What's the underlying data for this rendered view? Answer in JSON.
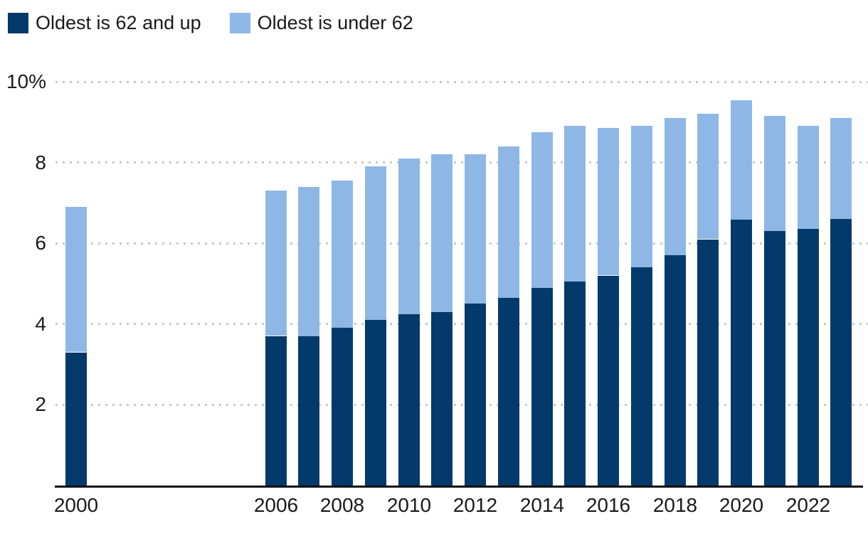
{
  "legend": {
    "items": [
      {
        "label": "Oldest is 62 and up",
        "color": "#04396b"
      },
      {
        "label": "Oldest is under 62",
        "color": "#8eb7e6"
      }
    ]
  },
  "colors": {
    "dark": "#04396b",
    "light": "#8eb7e6",
    "grid": "#c9c9c9",
    "axis": "#111111",
    "text": "#1a1a1a",
    "background": "#ffffff"
  },
  "chart_data": {
    "type": "bar",
    "stacked": true,
    "title": "",
    "xlabel": "",
    "ylabel": "",
    "unit": "%",
    "x": [
      2000,
      2006,
      2007,
      2008,
      2009,
      2010,
      2011,
      2012,
      2013,
      2014,
      2015,
      2016,
      2017,
      2018,
      2019,
      2020,
      2021,
      2022,
      2023
    ],
    "series": [
      {
        "name": "Oldest is 62 and up",
        "color_key": "dark",
        "values": [
          3.3,
          3.7,
          3.7,
          3.9,
          4.1,
          4.25,
          4.3,
          4.5,
          4.65,
          4.9,
          5.05,
          5.2,
          5.4,
          5.7,
          6.1,
          6.6,
          6.3,
          6.35,
          6.6
        ]
      },
      {
        "name": "Oldest is under 62",
        "color_key": "light",
        "values": [
          3.6,
          3.6,
          3.7,
          3.65,
          3.8,
          3.85,
          3.9,
          3.7,
          3.75,
          3.85,
          3.85,
          3.65,
          3.5,
          3.4,
          3.1,
          2.95,
          2.85,
          2.55,
          2.5
        ]
      }
    ],
    "stacked_totals": [
      6.9,
      7.3,
      7.4,
      7.55,
      7.9,
      8.1,
      8.2,
      8.2,
      8.4,
      8.75,
      8.9,
      8.85,
      8.9,
      9.1,
      9.2,
      9.55,
      9.15,
      8.9,
      9.1
    ],
    "yticks": [
      2,
      4,
      6,
      8,
      10
    ],
    "ytick_labels": [
      "2",
      "4",
      "6",
      "8",
      "10%"
    ],
    "ylim": [
      0,
      10
    ],
    "xtick_labels": [
      "2000",
      "2006",
      "2008",
      "2010",
      "2012",
      "2014",
      "2016",
      "2018",
      "2020",
      "2022"
    ],
    "grid": "horizontal-dotted",
    "legend_position": "top-left"
  }
}
